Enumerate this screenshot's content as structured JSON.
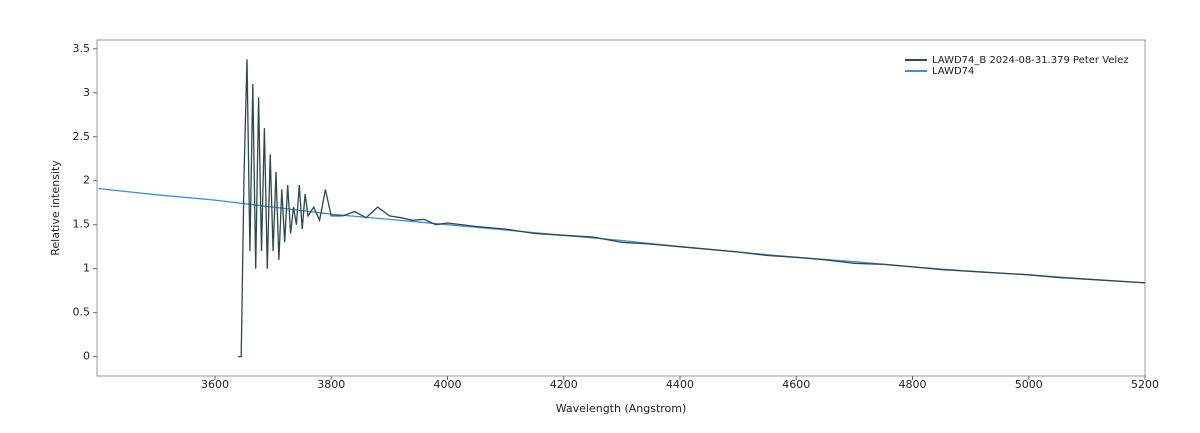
{
  "chart_data": {
    "type": "line",
    "x_label": "Wavelength (Angstrom)",
    "y_label": "Relative intensity",
    "xlim": [
      3397,
      5200
    ],
    "ylim": [
      -0.22,
      3.6
    ],
    "xticks": [
      3600,
      3800,
      4000,
      4200,
      4400,
      4600,
      4800,
      5000,
      5200
    ],
    "yticks": [
      0,
      0.5,
      1,
      1.5,
      2,
      2.5,
      3,
      3.5
    ],
    "legend": "top-right",
    "series": [
      {
        "name": "LAWD74_B  2024-08-31.379  Peter Velez",
        "color": "#2f4a44",
        "x": [
          3640,
          3645,
          3650,
          3655,
          3660,
          3665,
          3670,
          3675,
          3680,
          3685,
          3690,
          3695,
          3700,
          3705,
          3710,
          3715,
          3720,
          3725,
          3730,
          3735,
          3740,
          3745,
          3750,
          3755,
          3760,
          3770,
          3780,
          3790,
          3800,
          3820,
          3840,
          3860,
          3880,
          3900,
          3920,
          3940,
          3960,
          3980,
          4000,
          4050,
          4100,
          4150,
          4200,
          4250,
          4300,
          4350,
          4400,
          4450,
          4500,
          4550,
          4600,
          4650,
          4700,
          4750,
          4800,
          4850,
          4900,
          4950,
          5000,
          5050,
          5100,
          5150,
          5200
        ],
        "values": [
          0,
          0,
          2.1,
          3.38,
          1.2,
          3.1,
          1.0,
          2.95,
          1.2,
          2.6,
          1.0,
          2.3,
          1.2,
          2.1,
          1.1,
          1.9,
          1.3,
          1.95,
          1.4,
          1.7,
          1.5,
          1.95,
          1.45,
          1.85,
          1.6,
          1.7,
          1.55,
          1.9,
          1.6,
          1.6,
          1.65,
          1.58,
          1.7,
          1.6,
          1.58,
          1.55,
          1.56,
          1.5,
          1.52,
          1.48,
          1.45,
          1.4,
          1.38,
          1.36,
          1.3,
          1.28,
          1.25,
          1.22,
          1.19,
          1.15,
          1.13,
          1.1,
          1.06,
          1.05,
          1.02,
          0.99,
          0.97,
          0.95,
          0.93,
          0.9,
          0.88,
          0.86,
          0.84
        ]
      },
      {
        "name": "LAWD74",
        "color": "#3a8fde",
        "x": [
          3400,
          3500,
          3600,
          3700,
          3800,
          3900,
          4000,
          4100,
          4200,
          4300,
          4400,
          4500,
          4600,
          4700,
          4800,
          4900,
          5000,
          5100,
          5200
        ],
        "values": [
          1.91,
          1.84,
          1.78,
          1.7,
          1.62,
          1.56,
          1.5,
          1.44,
          1.38,
          1.32,
          1.25,
          1.19,
          1.13,
          1.08,
          1.02,
          0.97,
          0.93,
          0.88,
          0.84
        ]
      }
    ]
  }
}
